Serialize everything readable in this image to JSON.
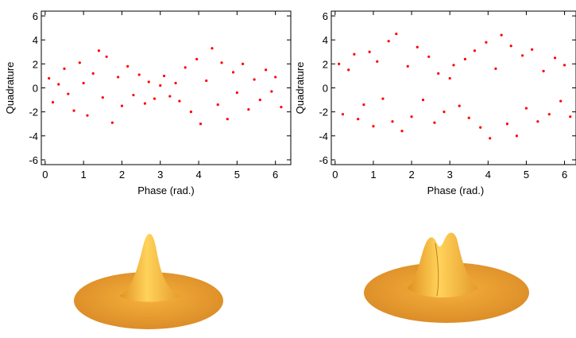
{
  "chart_data": [
    {
      "type": "scatter",
      "x_label": "Phase (rad.)",
      "y_label": "Quadrature",
      "color": "#ff0000",
      "xlim": [
        -0.1,
        6.4
      ],
      "ylim": [
        -6.4,
        6.4
      ],
      "xticks": [
        0,
        1,
        2,
        3,
        4,
        5,
        6
      ],
      "yticks": [
        -6,
        -4,
        -2,
        0,
        2,
        4,
        6
      ],
      "x": [
        0.1,
        0.2,
        0.35,
        0.5,
        0.6,
        0.75,
        0.9,
        1.0,
        1.1,
        1.25,
        1.4,
        1.5,
        1.6,
        1.75,
        1.9,
        2.0,
        2.15,
        2.3,
        2.45,
        2.6,
        2.7,
        2.85,
        3.0,
        3.1,
        3.25,
        3.4,
        3.5,
        3.65,
        3.8,
        3.95,
        4.05,
        4.2,
        4.35,
        4.5,
        4.6,
        4.75,
        4.9,
        5.0,
        5.15,
        5.3,
        5.45,
        5.6,
        5.75,
        5.9,
        6.0,
        6.15
      ],
      "y": [
        0.8,
        -1.2,
        0.3,
        1.6,
        -0.5,
        -1.9,
        2.1,
        0.4,
        -2.3,
        1.2,
        3.1,
        -0.8,
        2.6,
        -2.9,
        0.9,
        -1.5,
        1.8,
        -0.6,
        1.1,
        -1.3,
        0.5,
        -0.9,
        0.2,
        1.0,
        -0.7,
        0.4,
        -1.1,
        1.7,
        -2.0,
        2.4,
        -3.0,
        0.6,
        3.3,
        -1.4,
        2.1,
        -2.6,
        1.3,
        -0.4,
        2.0,
        -1.8,
        0.7,
        -1.0,
        1.5,
        -0.3,
        0.9,
        -1.6
      ]
    },
    {
      "type": "scatter",
      "x_label": "Phase (rad.)",
      "y_label": "Quadrature",
      "color": "#ff0000",
      "xlim": [
        -0.1,
        6.3
      ],
      "ylim": [
        -6.4,
        6.4
      ],
      "xticks": [
        0,
        1,
        2,
        3,
        4,
        5,
        6
      ],
      "yticks": [
        -6,
        -4,
        -2,
        0,
        2,
        4,
        6
      ],
      "x": [
        0.1,
        0.2,
        0.35,
        0.5,
        0.6,
        0.75,
        0.9,
        1.0,
        1.1,
        1.25,
        1.4,
        1.5,
        1.6,
        1.75,
        1.9,
        2.0,
        2.15,
        2.3,
        2.45,
        2.6,
        2.7,
        2.85,
        3.0,
        3.1,
        3.25,
        3.4,
        3.5,
        3.65,
        3.8,
        3.95,
        4.05,
        4.2,
        4.35,
        4.5,
        4.6,
        4.75,
        4.9,
        5.0,
        5.15,
        5.3,
        5.45,
        5.6,
        5.75,
        5.9,
        6.0,
        6.15
      ],
      "y": [
        2.0,
        -2.2,
        1.5,
        2.8,
        -2.6,
        -1.4,
        3.0,
        -3.2,
        2.2,
        -0.9,
        3.9,
        -2.8,
        4.5,
        -3.6,
        1.8,
        -2.4,
        3.4,
        -1.0,
        2.6,
        -2.9,
        1.2,
        -2.0,
        0.8,
        1.9,
        -1.5,
        2.4,
        -2.5,
        3.1,
        -3.3,
        3.8,
        -4.2,
        1.6,
        4.4,
        -3.0,
        3.5,
        -4.0,
        2.7,
        -1.7,
        3.2,
        -2.8,
        1.4,
        -2.2,
        2.5,
        -1.1,
        1.9,
        -2.4
      ]
    }
  ]
}
